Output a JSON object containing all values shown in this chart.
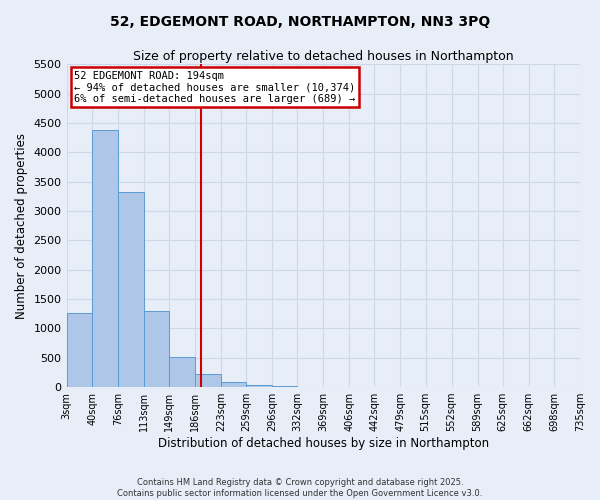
{
  "title": "52, EDGEMONT ROAD, NORTHAMPTON, NN3 3PQ",
  "subtitle": "Size of property relative to detached houses in Northampton",
  "xlabel": "Distribution of detached houses by size in Northampton",
  "ylabel": "Number of detached properties",
  "bar_edges": [
    3,
    40,
    76,
    113,
    149,
    186,
    223,
    259,
    296,
    332,
    369,
    406,
    442,
    479,
    515,
    552,
    589,
    625,
    662,
    698,
    735
  ],
  "bar_heights": [
    1270,
    4380,
    3320,
    1290,
    510,
    230,
    80,
    30,
    10,
    5,
    2,
    1,
    0,
    0,
    0,
    0,
    0,
    0,
    0,
    0
  ],
  "bar_color": "#aec6e8",
  "bar_edge_color": "#5b9bd5",
  "vline_x": 194,
  "vline_color": "#cc0000",
  "annotation_title": "52 EDGEMONT ROAD: 194sqm",
  "annotation_line1": "← 94% of detached houses are smaller (10,374)",
  "annotation_line2": "6% of semi-detached houses are larger (689) →",
  "annotation_box_color": "#cc0000",
  "ylim": [
    0,
    5500
  ],
  "yticks": [
    0,
    500,
    1000,
    1500,
    2000,
    2500,
    3000,
    3500,
    4000,
    4500,
    5000,
    5500
  ],
  "grid_color": "#d0d8e8",
  "background_color": "#e8eef8",
  "footnote1": "Contains HM Land Registry data © Crown copyright and database right 2025.",
  "footnote2": "Contains public sector information licensed under the Open Government Licence v3.0."
}
